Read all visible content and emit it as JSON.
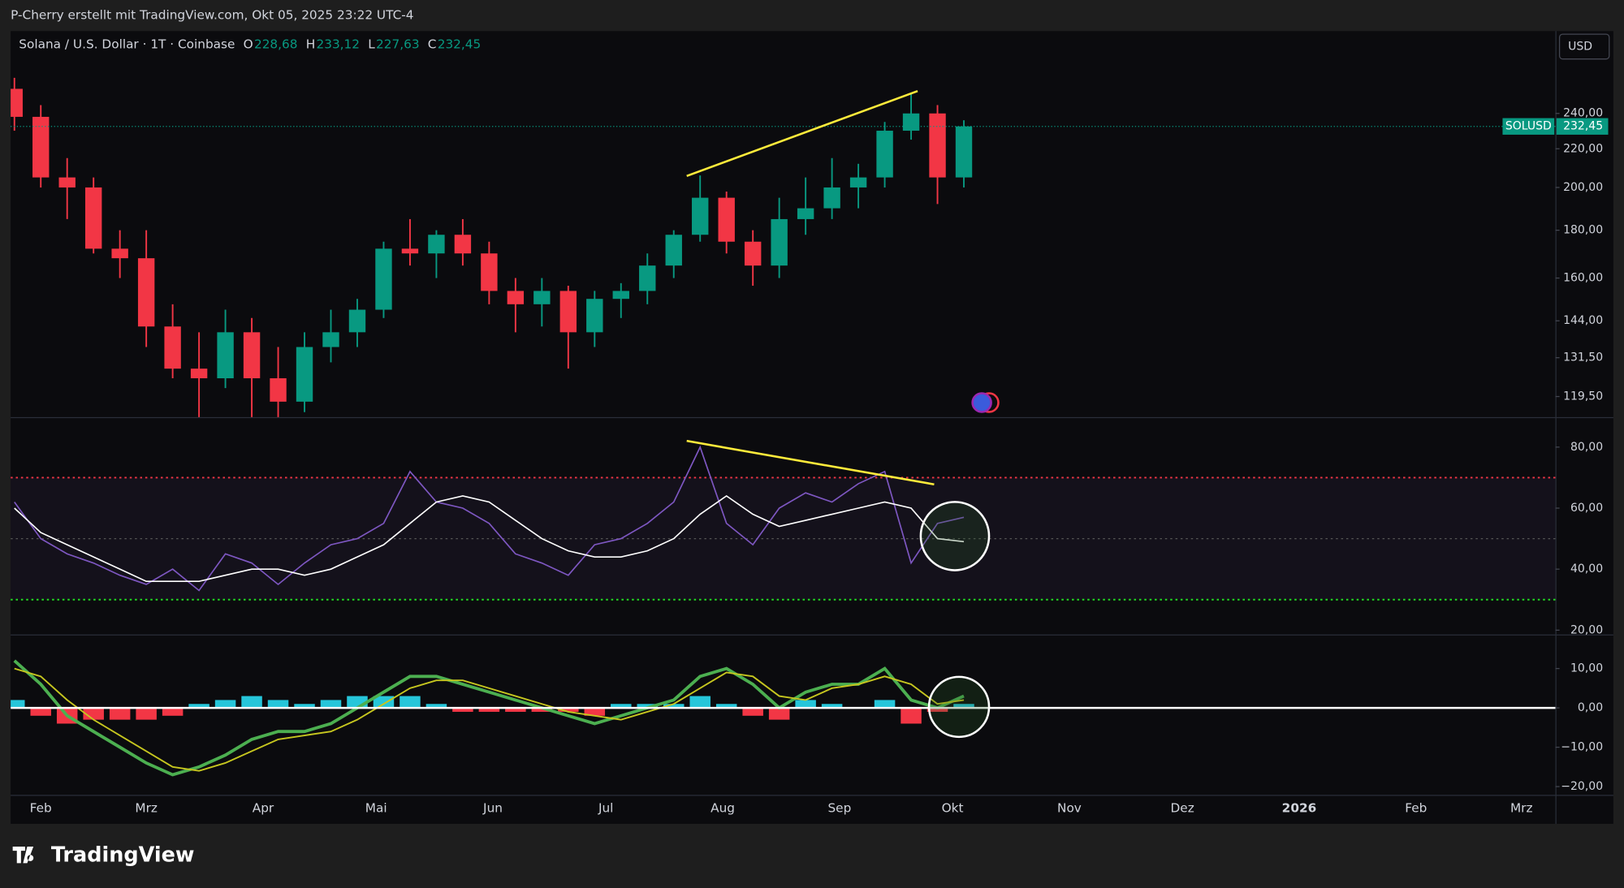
{
  "header": {
    "attribution": "P-Cherry erstellt mit TradingView.com, Okt 05, 2025 23:22 UTC-4",
    "symbol_title": "Solana / U.S. Dollar · 1T · Coinbase",
    "ohlc": [
      {
        "key": "O",
        "value": "228,68"
      },
      {
        "key": "H",
        "value": "233,12"
      },
      {
        "key": "L",
        "value": "227,63"
      },
      {
        "key": "C",
        "value": "232,45"
      }
    ],
    "currency": "USD",
    "logo": "TradingView"
  },
  "chart_data": [
    {
      "type": "candlestick",
      "symbol": "SOLUSD",
      "last": {
        "value": 232.45,
        "label": "232,45"
      },
      "up_color": "#089981",
      "down_color": "#f23645",
      "x": [
        24,
        31,
        38,
        45,
        52,
        59,
        66,
        73,
        80,
        87,
        94,
        101,
        108,
        115,
        122,
        129,
        136,
        143,
        150,
        157,
        164,
        171,
        178,
        185,
        192,
        199,
        206,
        213,
        220,
        227,
        234,
        241,
        248,
        255,
        262,
        269,
        276
      ],
      "open": [
        255,
        238,
        205,
        200,
        172,
        168,
        142,
        128,
        125,
        140,
        125,
        118,
        135,
        140,
        148,
        172,
        170,
        178,
        170,
        155,
        150,
        155,
        140,
        152,
        155,
        165,
        178,
        195,
        175,
        165,
        185,
        190,
        200,
        205,
        230,
        240,
        205
      ],
      "high": [
        262,
        245,
        215,
        205,
        180,
        180,
        150,
        140,
        148,
        145,
        135,
        140,
        148,
        152,
        175,
        185,
        180,
        185,
        175,
        160,
        160,
        157,
        155,
        158,
        170,
        180,
        206,
        198,
        180,
        195,
        205,
        215,
        212,
        235,
        252,
        245,
        236
      ],
      "low": [
        230,
        200,
        185,
        170,
        160,
        135,
        125,
        112,
        122,
        105,
        100,
        115,
        130,
        135,
        145,
        165,
        160,
        165,
        150,
        140,
        142,
        128,
        135,
        145,
        150,
        160,
        175,
        170,
        157,
        160,
        178,
        185,
        190,
        200,
        225,
        192,
        200
      ],
      "close": [
        238,
        205,
        200,
        172,
        168,
        142,
        128,
        125,
        140,
        125,
        118,
        135,
        140,
        148,
        172,
        170,
        178,
        170,
        155,
        150,
        155,
        140,
        152,
        155,
        165,
        178,
        195,
        175,
        165,
        185,
        190,
        200,
        205,
        230,
        240,
        205,
        232.45
      ],
      "xlim": [
        23,
        433
      ],
      "log_scale": true,
      "ylim": [
        113.6,
        294
      ],
      "yticks": [
        {
          "value": 119.5,
          "label": "119,50"
        },
        {
          "value": 131.5,
          "label": "131,50"
        },
        {
          "value": 144,
          "label": "144,00"
        },
        {
          "value": 160,
          "label": "160,00"
        },
        {
          "value": 180,
          "label": "180,00"
        },
        {
          "value": 200,
          "label": "200,00"
        },
        {
          "value": 220,
          "label": "220,00"
        },
        {
          "value": 240,
          "label": "240,00"
        }
      ],
      "xticks": [
        {
          "value": 31,
          "label": "Feb"
        },
        {
          "value": 59,
          "label": "Mrz"
        },
        {
          "value": 90,
          "label": "Apr"
        },
        {
          "value": 120,
          "label": "Mai"
        },
        {
          "value": 151,
          "label": "Jun"
        },
        {
          "value": 181,
          "label": "Jul"
        },
        {
          "value": 212,
          "label": "Aug"
        },
        {
          "value": 243,
          "label": "Sep"
        },
        {
          "value": 273,
          "label": "Okt"
        },
        {
          "value": 304,
          "label": "Nov"
        },
        {
          "value": 334,
          "label": "Dez"
        },
        {
          "value": 365,
          "label": "2026"
        },
        {
          "value": 396,
          "label": "Feb"
        },
        {
          "value": 424,
          "label": "Mrz"
        }
      ]
    },
    {
      "type": "line",
      "xlim": [
        23,
        433
      ],
      "ylim": [
        18.6,
        89.5
      ],
      "yticks": [
        {
          "value": 20,
          "label": "20,00"
        },
        {
          "value": 40,
          "label": "40,00"
        },
        {
          "value": 60,
          "label": "60,00"
        },
        {
          "value": 80,
          "label": "80,00"
        }
      ],
      "overbought": 70,
      "middle": 50,
      "oversold": 30,
      "x": [
        24,
        31,
        38,
        45,
        52,
        59,
        66,
        73,
        80,
        87,
        94,
        101,
        108,
        115,
        122,
        129,
        136,
        143,
        150,
        157,
        164,
        171,
        178,
        185,
        192,
        199,
        206,
        213,
        220,
        227,
        234,
        241,
        248,
        255,
        262,
        269,
        276
      ],
      "series": [
        {
          "color": "#7e57c2",
          "values": [
            62,
            50,
            45,
            42,
            38,
            35,
            40,
            33,
            45,
            42,
            35,
            42,
            48,
            50,
            55,
            72,
            62,
            60,
            55,
            45,
            42,
            38,
            48,
            50,
            55,
            62,
            80,
            55,
            48,
            60,
            65,
            62,
            68,
            72,
            42,
            55,
            57
          ]
        },
        {
          "color": "#ffffff",
          "values": [
            60,
            52,
            48,
            44,
            40,
            36,
            36,
            36,
            38,
            40,
            40,
            38,
            40,
            44,
            48,
            55,
            62,
            64,
            62,
            56,
            50,
            46,
            44,
            44,
            46,
            50,
            58,
            64,
            58,
            54,
            56,
            58,
            60,
            62,
            60,
            50,
            49
          ]
        }
      ]
    },
    {
      "type": "macd",
      "xlim": [
        23,
        433
      ],
      "ylim": [
        -22.1,
        18.4
      ],
      "yticks": [
        {
          "value": -20,
          "label": "−20,00"
        },
        {
          "value": -10,
          "label": "−10,00"
        },
        {
          "value": 0,
          "label": "0,00"
        },
        {
          "value": 10,
          "label": "10,00"
        }
      ],
      "x": [
        24,
        31,
        38,
        45,
        52,
        59,
        66,
        73,
        80,
        87,
        94,
        101,
        108,
        115,
        122,
        129,
        136,
        143,
        150,
        157,
        164,
        171,
        178,
        185,
        192,
        199,
        206,
        213,
        220,
        227,
        234,
        241,
        248,
        255,
        262,
        269,
        276
      ],
      "histogram": [
        2,
        -2,
        -4,
        -3,
        -3,
        -3,
        -2,
        1,
        2,
        3,
        2,
        1,
        2,
        3,
        3,
        3,
        1,
        -1,
        -1,
        -1,
        -1,
        -1,
        -2,
        1,
        1,
        1,
        3,
        1,
        -2,
        -3,
        2,
        1,
        0,
        2,
        -4,
        -1,
        1
      ],
      "hist_up_color": "#26c6da",
      "hist_down_color": "#f23645",
      "series": [
        {
          "color": "#4caf50",
          "values": [
            12,
            6,
            -2,
            -6,
            -10,
            -14,
            -17,
            -15,
            -12,
            -8,
            -6,
            -6,
            -4,
            0,
            4,
            8,
            8,
            6,
            4,
            2,
            0,
            -2,
            -4,
            -2,
            0,
            2,
            8,
            10,
            6,
            0,
            4,
            6,
            6,
            10,
            2,
            0,
            3
          ]
        },
        {
          "color": "#c6c61f",
          "values": [
            10,
            8,
            2,
            -3,
            -7,
            -11,
            -15,
            -16,
            -14,
            -11,
            -8,
            -7,
            -6,
            -3,
            1,
            5,
            7,
            7,
            5,
            3,
            1,
            -1,
            -2,
            -3,
            -1,
            1,
            5,
            9,
            8,
            3,
            2,
            5,
            6,
            8,
            6,
            1,
            2
          ]
        }
      ]
    }
  ]
}
